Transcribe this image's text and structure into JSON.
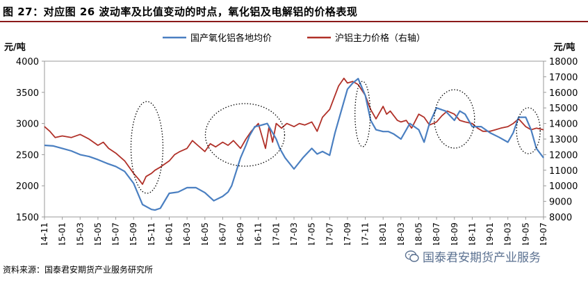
{
  "title": "图 27：对应图 26 波动率及比值变动的时点，氧化铝及电解铝的价格表现",
  "source": "资料来源：国泰君安期货产业服务研究所",
  "watermark": "国泰君安期货产业服务",
  "colors": {
    "left_series": "#4a7fc1",
    "right_series": "#b03028",
    "border": "#8b1a1a"
  },
  "chart_data": {
    "type": "line",
    "y_left_label": "元/吨",
    "y_right_label": "元/吨",
    "ylim_left": [
      1500,
      4000
    ],
    "ylim_right": [
      8000,
      18000
    ],
    "y_left_ticks": [
      1500,
      2000,
      2500,
      3000,
      3500,
      4000
    ],
    "y_right_ticks": [
      8000,
      9000,
      10000,
      11000,
      12000,
      13000,
      14000,
      15000,
      16000,
      17000,
      18000
    ],
    "x_ticks": [
      "14-11",
      "15-01",
      "15-03",
      "15-05",
      "15-07",
      "15-09",
      "15-11",
      "16-01",
      "16-03",
      "16-05",
      "16-07",
      "16-09",
      "16-11",
      "17-01",
      "17-03",
      "17-05",
      "17-07",
      "17-09",
      "17-11",
      "18-01",
      "18-03",
      "18-05",
      "18-07",
      "18-09",
      "18-11",
      "19-01",
      "19-03",
      "19-05",
      "19-07"
    ],
    "legend": [
      "国产氧化铝各地均价",
      "沪铝主力价格（右轴）"
    ],
    "legend_position": "top",
    "series": [
      {
        "name": "国产氧化铝各地均价",
        "axis": "left",
        "x": [
          0,
          0.5,
          1,
          1.5,
          2,
          2.5,
          3,
          3.5,
          4,
          4.5,
          5,
          5.5,
          6,
          6.2,
          6.5,
          7,
          7.5,
          8,
          8.5,
          9,
          9.5,
          10,
          10.3,
          10.5,
          11,
          11.3,
          11.5,
          11.8,
          12,
          12.5,
          13,
          13.2,
          13.5,
          14,
          14.5,
          15,
          15.3,
          15.6,
          16,
          16.3,
          16.7,
          17,
          17.3,
          17.6,
          18,
          18.3,
          18.6,
          19,
          19.3,
          19.6,
          20,
          20.5,
          21,
          21.3,
          21.6,
          22,
          22.5,
          23,
          23.3,
          23.6,
          24,
          24.5,
          25,
          25.5,
          26,
          26.3,
          26.6,
          27,
          27.3,
          27.6,
          28
        ],
        "values": [
          2650,
          2640,
          2600,
          2560,
          2500,
          2470,
          2420,
          2360,
          2310,
          2230,
          2040,
          1700,
          1620,
          1610,
          1640,
          1880,
          1900,
          1970,
          1970,
          1890,
          1760,
          1830,
          1900,
          2000,
          2450,
          2650,
          2800,
          2950,
          2960,
          3000,
          2750,
          2600,
          2450,
          2270,
          2450,
          2600,
          2510,
          2550,
          2490,
          2850,
          3250,
          3550,
          3650,
          3720,
          3450,
          3050,
          2900,
          2870,
          2870,
          2830,
          2750,
          3000,
          2900,
          2700,
          3000,
          3250,
          3200,
          3050,
          3200,
          3150,
          2950,
          2950,
          2850,
          2780,
          2700,
          2850,
          3100,
          3100,
          2900,
          2600,
          2450
        ]
      },
      {
        "name": "沪铝主力价格（右轴）",
        "axis": "right",
        "x": [
          0,
          0.3,
          0.6,
          1,
          1.5,
          2,
          2.5,
          3,
          3.3,
          3.6,
          4,
          4.5,
          5,
          5.3,
          5.5,
          5.7,
          6,
          6.2,
          6.5,
          7,
          7.3,
          7.6,
          8,
          8.3,
          8.6,
          9,
          9.3,
          9.6,
          10,
          10.3,
          10.6,
          11,
          11.3,
          11.6,
          12,
          12.2,
          12.4,
          12.6,
          12.8,
          13,
          13.3,
          13.6,
          14,
          14.3,
          14.6,
          15,
          15.3,
          15.6,
          16,
          16.2,
          16.5,
          16.8,
          17,
          17.3,
          17.6,
          18,
          18.3,
          18.6,
          19,
          19.2,
          19.4,
          19.6,
          19.8,
          20,
          20.3,
          20.6,
          21,
          21.3,
          21.6,
          22,
          22.3,
          22.6,
          23,
          23.3,
          23.6,
          24,
          24.3,
          24.6,
          25,
          25.3,
          25.6,
          26,
          26.3,
          26.6,
          27,
          27.3,
          27.6,
          28
        ],
        "values": [
          13800,
          13500,
          13100,
          13200,
          13100,
          13300,
          13000,
          12600,
          12800,
          12400,
          12100,
          11600,
          10800,
          10400,
          10100,
          10600,
          10800,
          11000,
          11200,
          11600,
          12000,
          12200,
          12400,
          12900,
          12600,
          12200,
          12700,
          12500,
          12800,
          12600,
          12900,
          12400,
          13000,
          13500,
          14000,
          13200,
          12400,
          13800,
          12800,
          14000,
          13700,
          14000,
          13800,
          14000,
          13900,
          14100,
          13500,
          14400,
          14900,
          15500,
          16400,
          16900,
          16600,
          16700,
          16500,
          15800,
          14900,
          14300,
          15100,
          14600,
          14800,
          14500,
          14200,
          14100,
          14200,
          13700,
          14600,
          14400,
          13900,
          14100,
          14500,
          14800,
          14600,
          14200,
          14100,
          14000,
          13700,
          13500,
          13500,
          13600,
          13700,
          13800,
          14000,
          14300,
          13800,
          13600,
          13700,
          13600
        ]
      }
    ],
    "highlighted_periods": [
      "15-09 ~ 15-11",
      "16-09 ~ 17-01",
      "17-12 ~ 18-01",
      "18-09 ~ 18-12",
      "19-06 ~ 19-07"
    ]
  }
}
